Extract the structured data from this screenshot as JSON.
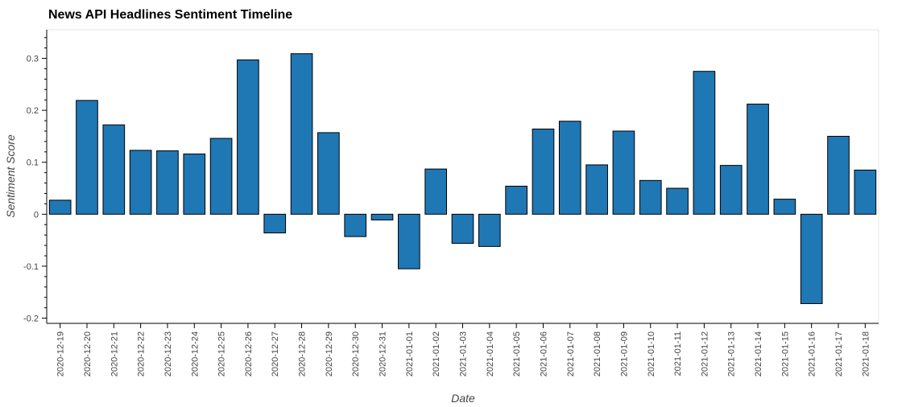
{
  "chart_data": {
    "type": "bar",
    "title": "News API Headlines Sentiment Timeline",
    "xlabel": "Date",
    "ylabel": "Sentiment Score",
    "ylim": [
      -0.21,
      0.355
    ],
    "yticks": [
      -0.2,
      -0.1,
      0,
      0.1,
      0.2,
      0.3
    ],
    "ytick_labels": [
      "-0.2",
      "-0.1",
      "0",
      "0.1",
      "0.2",
      "0.3"
    ],
    "bar_color": "#1f77b4",
    "bar_edge_color": "#000000",
    "grid": false,
    "categories": [
      "2020-12-19",
      "2020-12-20",
      "2020-12-21",
      "2020-12-22",
      "2020-12-23",
      "2020-12-24",
      "2020-12-25",
      "2020-12-26",
      "2020-12-27",
      "2020-12-28",
      "2020-12-29",
      "2020-12-30",
      "2020-12-31",
      "2021-01-01",
      "2021-01-02",
      "2021-01-03",
      "2021-01-04",
      "2021-01-05",
      "2021-01-06",
      "2021-01-07",
      "2021-01-08",
      "2021-01-09",
      "2021-01-10",
      "2021-01-11",
      "2021-01-12",
      "2021-01-13",
      "2021-01-14",
      "2021-01-15",
      "2021-01-16",
      "2021-01-17",
      "2021-01-18"
    ],
    "values": [
      0.027,
      0.219,
      0.172,
      0.123,
      0.122,
      0.116,
      0.146,
      0.297,
      -0.036,
      0.309,
      0.157,
      -0.043,
      -0.011,
      -0.105,
      0.087,
      -0.056,
      -0.062,
      0.054,
      0.164,
      0.179,
      0.095,
      0.16,
      0.065,
      0.05,
      0.275,
      0.094,
      0.212,
      0.029,
      -0.172,
      0.15,
      0.085
    ]
  }
}
